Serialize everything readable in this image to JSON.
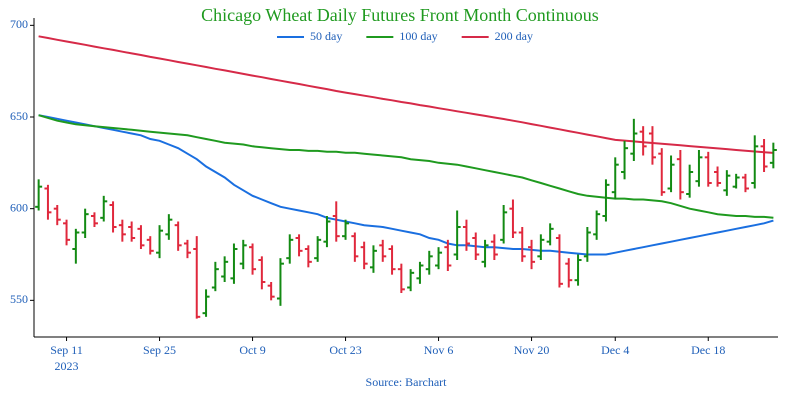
{
  "chart_data": {
    "type": "ohlc",
    "title": "Chicago Wheat Daily Futures Front Month Continuous",
    "source": "Source: Barchart",
    "year_label": "2023",
    "categories": [
      null,
      null,
      null,
      "Sep 11",
      null,
      null,
      null,
      null,
      null,
      null,
      null,
      null,
      null,
      "Sep 25",
      null,
      null,
      null,
      null,
      null,
      null,
      null,
      null,
      null,
      "Oct 9",
      null,
      null,
      null,
      null,
      null,
      null,
      null,
      null,
      null,
      "Oct 23",
      null,
      null,
      null,
      null,
      null,
      null,
      null,
      null,
      null,
      "Nov 6",
      null,
      null,
      null,
      null,
      null,
      null,
      null,
      null,
      null,
      "Nov 20",
      null,
      null,
      null,
      null,
      null,
      null,
      null,
      null,
      "Dec 4",
      null,
      null,
      null,
      null,
      null,
      null,
      null,
      null,
      null,
      "Dec 18",
      null,
      null,
      null,
      null,
      null,
      null,
      null
    ],
    "ohlc": {
      "open": [
        601,
        611,
        600,
        592,
        578,
        587,
        596,
        595,
        602,
        591,
        590,
        589,
        583,
        576,
        586,
        591,
        581,
        578,
        543,
        557,
        563,
        562,
        570,
        579,
        572,
        558,
        551,
        573,
        584,
        578,
        573,
        582,
        596,
        585,
        585,
        579,
        568,
        580,
        578,
        567,
        557,
        562,
        567,
        569,
        579,
        575,
        590,
        584,
        571,
        582,
        583,
        600,
        587,
        579,
        574,
        582,
        584,
        570,
        561,
        574,
        586,
        596,
        609,
        620,
        630,
        642,
        641,
        630,
        611,
        627,
        608,
        615,
        628,
        620,
        610,
        612,
        617,
        614,
        634,
        625
      ],
      "high": [
        616,
        613,
        602,
        594,
        589,
        600,
        598,
        607,
        604,
        594,
        593,
        591,
        585,
        591,
        597,
        593,
        583,
        585,
        556,
        571,
        574,
        581,
        583,
        581,
        574,
        560,
        573,
        586,
        586,
        580,
        585,
        596,
        604,
        594,
        587,
        582,
        580,
        583,
        580,
        570,
        567,
        571,
        577,
        579,
        583,
        599,
        594,
        587,
        583,
        586,
        602,
        605,
        590,
        583,
        586,
        592,
        586,
        573,
        575,
        590,
        599,
        616,
        628,
        637,
        649,
        645,
        645,
        633,
        629,
        632,
        624,
        632,
        631,
        623,
        621,
        619,
        619,
        640,
        638,
        636
      ],
      "low": [
        599,
        594,
        591,
        580,
        570,
        584,
        590,
        593,
        587,
        582,
        582,
        578,
        575,
        573,
        583,
        577,
        573,
        540,
        541,
        555,
        560,
        559,
        567,
        564,
        556,
        550,
        547,
        570,
        574,
        568,
        571,
        579,
        582,
        583,
        571,
        567,
        565,
        571,
        564,
        554,
        555,
        559,
        564,
        567,
        566,
        572,
        577,
        572,
        568,
        572,
        581,
        584,
        571,
        567,
        572,
        580,
        557,
        557,
        558,
        571,
        583,
        593,
        605,
        616,
        626,
        629,
        624,
        607,
        609,
        605,
        606,
        612,
        612,
        612,
        607,
        611,
        609,
        611,
        620,
        622
      ],
      "close": [
        612,
        598,
        594,
        583,
        587,
        597,
        592,
        604,
        590,
        586,
        584,
        580,
        577,
        588,
        594,
        580,
        576,
        541,
        552,
        567,
        571,
        578,
        580,
        567,
        560,
        552,
        570,
        583,
        577,
        571,
        583,
        593,
        585,
        592,
        574,
        570,
        577,
        574,
        567,
        556,
        565,
        569,
        574,
        576,
        569,
        590,
        581,
        575,
        580,
        575,
        598,
        587,
        574,
        571,
        583,
        589,
        559,
        561,
        572,
        587,
        597,
        613,
        624,
        633,
        641,
        634,
        628,
        609,
        624,
        609,
        620,
        628,
        614,
        614,
        618,
        617,
        611,
        634,
        623,
        632
      ]
    },
    "up_color": "#138a13",
    "down_color": "#e0283c",
    "series": [
      {
        "name": "50 day",
        "color": "#1a6fe0",
        "values": [
          651,
          650,
          649,
          648,
          647,
          646,
          645,
          644,
          643,
          642,
          641,
          640,
          638,
          637,
          635,
          633,
          630,
          627,
          623,
          620,
          617,
          613,
          610,
          607,
          605,
          603,
          601,
          600,
          599,
          598,
          597,
          595,
          594,
          593,
          592,
          591,
          590.5,
          590,
          589,
          588,
          587,
          586,
          584,
          583,
          581,
          580,
          580,
          579.5,
          579,
          579,
          578.5,
          578,
          578,
          577.5,
          577,
          577,
          576.5,
          576,
          575.5,
          575,
          575,
          575,
          576,
          577,
          578,
          579,
          580,
          581,
          582,
          583,
          584,
          585,
          586,
          587,
          588,
          589,
          590,
          591,
          592,
          593.5
        ]
      },
      {
        "name": "100 day",
        "color": "#1f9a1f",
        "values": [
          651,
          649.5,
          648,
          647,
          646,
          645.5,
          645,
          644.5,
          644,
          643.5,
          643,
          642.5,
          642,
          641.5,
          641,
          640.5,
          640,
          639,
          638,
          637,
          636,
          635.5,
          635,
          634,
          633.5,
          633,
          632.5,
          632,
          632,
          631.5,
          631.5,
          631,
          631,
          630.5,
          630.5,
          630,
          629.5,
          629,
          628.5,
          628,
          627,
          626.5,
          626,
          625,
          624.5,
          624,
          623,
          622,
          621,
          620,
          619,
          618,
          617,
          615.5,
          614,
          612.5,
          611,
          609.5,
          608,
          607,
          606.5,
          606,
          605.5,
          605.5,
          605,
          605,
          604.5,
          604,
          603,
          601.5,
          600,
          599,
          598,
          597,
          596.5,
          596,
          596,
          595.5,
          595.5,
          595
        ]
      },
      {
        "name": "200 day",
        "color": "#d62a48",
        "values": [
          694,
          693.1,
          692.1,
          691.2,
          690.3,
          689.4,
          688.4,
          687.5,
          686.6,
          685.6,
          684.7,
          683.8,
          682.8,
          681.9,
          681,
          680,
          679.1,
          678.2,
          677.3,
          676.3,
          675.4,
          674.5,
          673.5,
          672.6,
          671.7,
          670.7,
          669.8,
          668.9,
          668,
          667,
          666.1,
          665.2,
          664.2,
          663.3,
          662.5,
          661.6,
          660.8,
          659.9,
          659.1,
          658.2,
          657.4,
          656.5,
          655.7,
          654.8,
          654,
          653.1,
          652.3,
          651.4,
          650.6,
          649.7,
          648.9,
          648,
          647.1,
          646.1,
          645.2,
          644.2,
          643.3,
          642.3,
          641.4,
          640.4,
          639.5,
          638.5,
          637.5,
          637.1,
          636.7,
          636.2,
          635.8,
          635.4,
          635,
          634.6,
          634.1,
          633.7,
          633.3,
          632.9,
          632.5,
          632,
          631.6,
          631.2,
          630.8,
          630.4
        ]
      }
    ],
    "ylim": [
      530,
      704
    ],
    "yticks": [
      550,
      600,
      650,
      700
    ],
    "grid": false
  }
}
